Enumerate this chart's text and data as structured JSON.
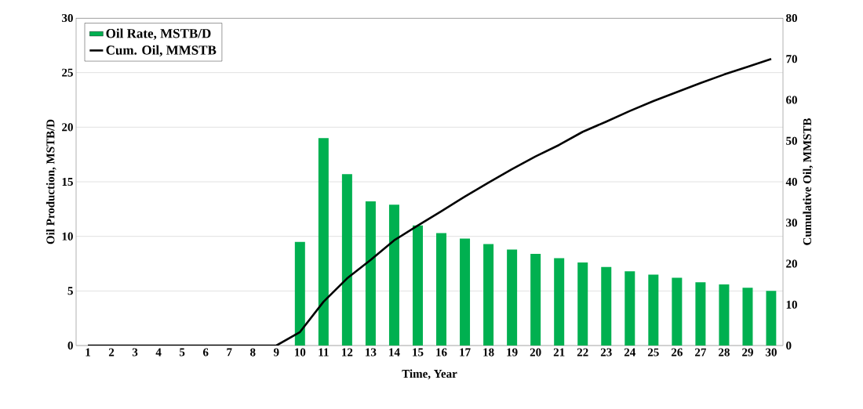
{
  "chart_data": {
    "type": "bar",
    "xlabel": "Time, Year",
    "ylabel": "Oil Production, MSTB/D",
    "y2label": "Cumulative Oil, MMSTB",
    "categories": [
      "1",
      "2",
      "3",
      "4",
      "5",
      "6",
      "7",
      "8",
      "9",
      "10",
      "11",
      "12",
      "13",
      "14",
      "15",
      "16",
      "17",
      "18",
      "19",
      "20",
      "21",
      "22",
      "23",
      "24",
      "25",
      "26",
      "27",
      "28",
      "29",
      "30"
    ],
    "series": [
      {
        "name": "Oil Rate, MSTB/D",
        "color": "#00b050",
        "values": [
          0,
          0,
          0,
          0,
          0,
          0,
          0,
          0,
          0,
          9.5,
          19.0,
          15.7,
          13.2,
          12.9,
          11.0,
          10.3,
          9.8,
          9.3,
          8.8,
          8.4,
          8.0,
          7.6,
          7.2,
          6.8,
          6.5,
          6.2,
          5.8,
          5.6,
          5.3,
          5.0
        ]
      },
      {
        "name": "Cum. Oil, MMSTB",
        "type": "line",
        "axis": "y2",
        "color": "#000000",
        "values": [
          0,
          0,
          0,
          0,
          0,
          0,
          0,
          0,
          0,
          3.3,
          10.7,
          16.4,
          20.9,
          25.7,
          29.3,
          32.8,
          36.4,
          39.8,
          43.1,
          46.2,
          49.0,
          52.2,
          54.7,
          57.3,
          59.7,
          61.9,
          64.1,
          66.2,
          68.1,
          70.0
        ]
      }
    ],
    "ylim": [
      0,
      30
    ],
    "yticks": [
      0,
      5,
      10,
      15,
      20,
      25,
      30
    ],
    "y2lim": [
      0,
      80
    ],
    "y2ticks": [
      0,
      10,
      20,
      30,
      40,
      50,
      60,
      70,
      80
    ],
    "grid": "y",
    "legend": "top left"
  }
}
